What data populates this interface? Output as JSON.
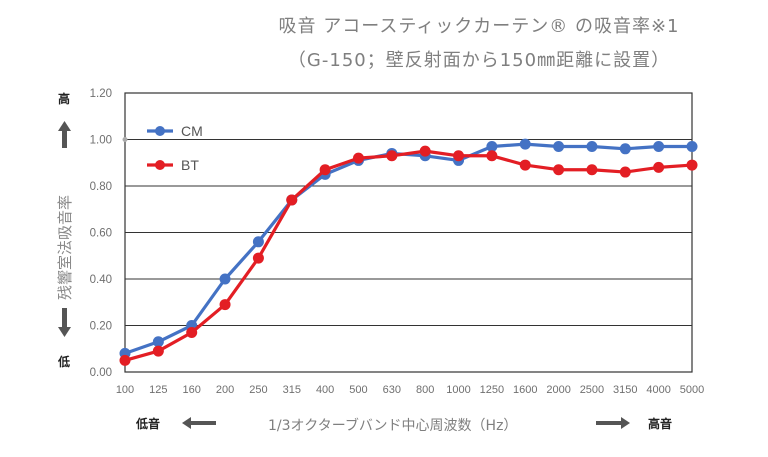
{
  "chart_data": {
    "type": "line",
    "title": "吸音 アコースティックカーテン® の吸音率※1",
    "subtitle": "（G-150；壁反射面から150㎜距離に設置）",
    "xlabel": "1/3オクターブバンド中心周波数（Hz）",
    "ylabel": "残響室法吸音率",
    "ylim": [
      0,
      1.2
    ],
    "y_ticks": [
      "0.00",
      "0.20",
      "0.40",
      "0.60",
      "0.80",
      "1.00",
      "1.20"
    ],
    "grid": true,
    "legend_position": "top-left",
    "categories": [
      "100",
      "125",
      "160",
      "200",
      "250",
      "315",
      "400",
      "500",
      "630",
      "800",
      "1000",
      "1250",
      "1600",
      "2000",
      "2500",
      "3150",
      "4000",
      "5000"
    ],
    "series": [
      {
        "name": "CM",
        "color": "#4472c4",
        "values": [
          0.08,
          0.13,
          0.2,
          0.4,
          0.56,
          0.74,
          0.85,
          0.91,
          0.94,
          0.93,
          0.91,
          0.97,
          0.98,
          0.97,
          0.97,
          0.96,
          0.97,
          0.97
        ]
      },
      {
        "name": "BT",
        "color": "#e31e24",
        "values": [
          0.05,
          0.09,
          0.17,
          0.29,
          0.49,
          0.74,
          0.87,
          0.92,
          0.93,
          0.95,
          0.93,
          0.93,
          0.89,
          0.87,
          0.87,
          0.86,
          0.88,
          0.89
        ]
      }
    ],
    "annotations": {
      "y_high": "高",
      "y_low": "低",
      "x_low": "低音",
      "x_high": "高音"
    }
  }
}
